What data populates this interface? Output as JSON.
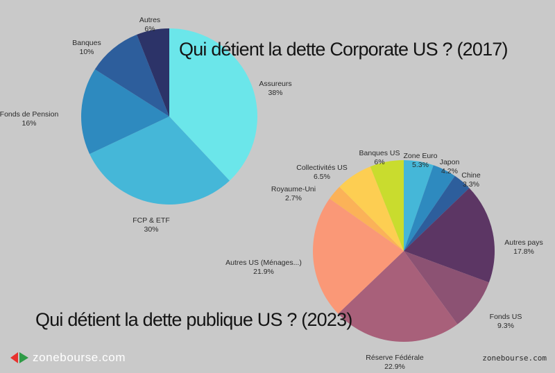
{
  "chart_data": [
    {
      "type": "pie",
      "title": "Qui détient la dette Corporate US ? (2017)",
      "slices": [
        {
          "label": "Assureurs",
          "pct_text": "38%",
          "value": 38,
          "color": "#6be6ea"
        },
        {
          "label": "FCP & ETF",
          "pct_text": "30%",
          "value": 30,
          "color": "#45b7d8"
        },
        {
          "label": "Fonds de Pension",
          "pct_text": "16%",
          "value": 16,
          "color": "#2e8abf"
        },
        {
          "label": "Banques",
          "pct_text": "10%",
          "value": 10,
          "color": "#2d5e9c"
        },
        {
          "label": "Autres",
          "pct_text": "6%",
          "value": 6,
          "color": "#2c3368"
        }
      ]
    },
    {
      "type": "pie",
      "title": "Qui détient la dette publique US ? (2023)",
      "slices": [
        {
          "label": "Zone Euro",
          "pct_text": "5.3%",
          "value": 5.3,
          "color": "#45b7d8"
        },
        {
          "label": "Japon",
          "pct_text": "4.2%",
          "value": 4.2,
          "color": "#2e8abf"
        },
        {
          "label": "Chine",
          "pct_text": "3.3%",
          "value": 3.3,
          "color": "#2d5e9c"
        },
        {
          "label": "Autres pays",
          "pct_text": "17.8%",
          "value": 17.8,
          "color": "#5c3664"
        },
        {
          "label": "Fonds US",
          "pct_text": "9.3%",
          "value": 9.3,
          "color": "#8c5273"
        },
        {
          "label": "Réserve Fédérale",
          "pct_text": "22.9%",
          "value": 22.9,
          "color": "#a8607a"
        },
        {
          "label": "Autres US (Ménages...)",
          "pct_text": "21.9%",
          "value": 21.9,
          "color": "#fa9877"
        },
        {
          "label": "Royaume-Uni",
          "pct_text": "2.7%",
          "value": 2.7,
          "color": "#fbb258"
        },
        {
          "label": "Collectivités US",
          "pct_text": "6.5%",
          "value": 6.5,
          "color": "#fdce52"
        },
        {
          "label": "Banques US",
          "pct_text": "6%",
          "value": 6,
          "color": "#c9dc2e"
        }
      ]
    }
  ],
  "brand": {
    "name": "zonebourse.com",
    "watermark": "zonebourse.com"
  }
}
